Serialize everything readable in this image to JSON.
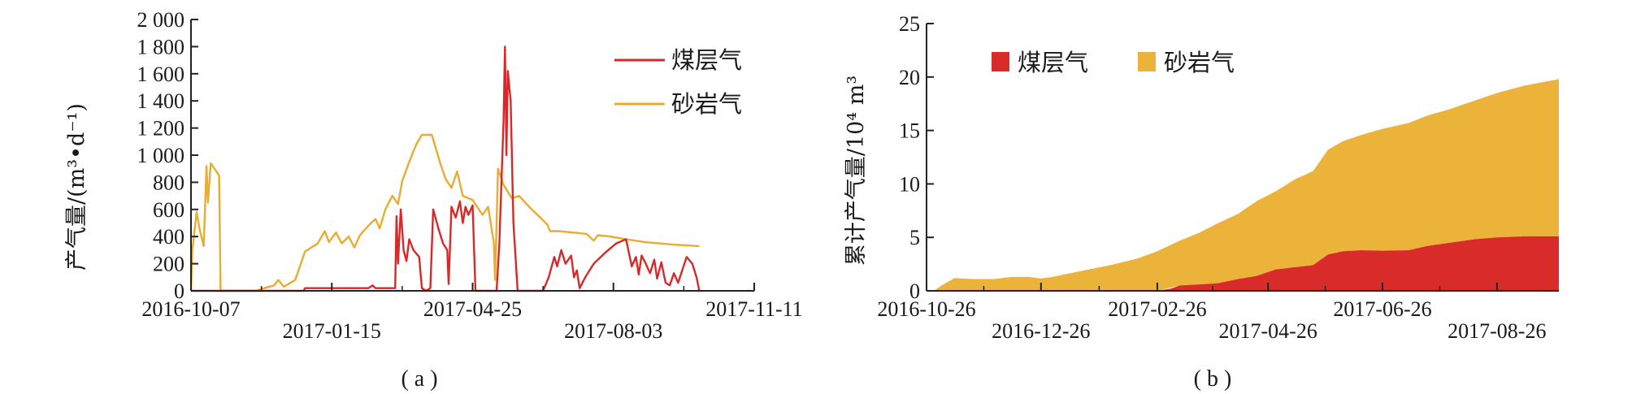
{
  "chart_data": [
    {
      "type": "line",
      "caption": "( a )",
      "ylabel": "产气量/(m³•d⁻¹)",
      "ylim": [
        0,
        2000
      ],
      "yticks": [
        "0",
        "200",
        "400",
        "600",
        "800",
        "1 000",
        "1 200",
        "1 400",
        "1 600",
        "1 800",
        "2 000"
      ],
      "xticks_upper": [
        "2016-10-07",
        "2017-04-25",
        "2017-11-11"
      ],
      "xticks_lower": [
        "2017-01-15",
        "2017-08-03"
      ],
      "x_range": [
        "2016-10-07",
        "2017-11-11"
      ],
      "legend": [
        "煤层气",
        "砂岩气"
      ],
      "colors": {
        "煤层气": "#d62a2a",
        "砂岩气": "#e8ac30"
      },
      "series": [
        {
          "name": "砂岩气",
          "points": [
            [
              "2016-10-07",
              0
            ],
            [
              "2016-10-08",
              300
            ],
            [
              "2016-10-11",
              580
            ],
            [
              "2016-10-13",
              460
            ],
            [
              "2016-10-16",
              330
            ],
            [
              "2016-10-18",
              920
            ],
            [
              "2016-10-19",
              650
            ],
            [
              "2016-10-21",
              940
            ],
            [
              "2016-10-27",
              850
            ],
            [
              "2016-10-28",
              0
            ],
            [
              "2016-11-05",
              0
            ],
            [
              "2016-11-22",
              0
            ],
            [
              "2016-11-28",
              20
            ],
            [
              "2016-12-05",
              40
            ],
            [
              "2016-12-08",
              80
            ],
            [
              "2016-12-12",
              30
            ],
            [
              "2016-12-20",
              80
            ],
            [
              "2016-12-27",
              290
            ],
            [
              "2017-01-05",
              350
            ],
            [
              "2017-01-10",
              440
            ],
            [
              "2017-01-13",
              360
            ],
            [
              "2017-01-18",
              430
            ],
            [
              "2017-01-22",
              350
            ],
            [
              "2017-01-27",
              400
            ],
            [
              "2017-01-31",
              320
            ],
            [
              "2017-02-04",
              410
            ],
            [
              "2017-02-10",
              480
            ],
            [
              "2017-02-15",
              530
            ],
            [
              "2017-02-18",
              460
            ],
            [
              "2017-02-22",
              600
            ],
            [
              "2017-02-27",
              700
            ],
            [
              "2017-03-03",
              640
            ],
            [
              "2017-03-06",
              810
            ],
            [
              "2017-03-11",
              950
            ],
            [
              "2017-03-16",
              1080
            ],
            [
              "2017-03-20",
              1150
            ],
            [
              "2017-03-27",
              1150
            ],
            [
              "2017-04-02",
              940
            ],
            [
              "2017-04-06",
              820
            ],
            [
              "2017-04-10",
              760
            ],
            [
              "2017-04-14",
              880
            ],
            [
              "2017-04-18",
              700
            ],
            [
              "2017-04-25",
              670
            ],
            [
              "2017-05-02",
              560
            ],
            [
              "2017-05-06",
              620
            ],
            [
              "2017-05-10",
              360
            ],
            [
              "2017-05-11",
              80
            ],
            [
              "2017-05-13",
              900
            ],
            [
              "2017-05-17",
              780
            ],
            [
              "2017-05-23",
              680
            ],
            [
              "2017-05-28",
              700
            ],
            [
              "2017-06-05",
              610
            ],
            [
              "2017-06-12",
              540
            ],
            [
              "2017-06-17",
              490
            ],
            [
              "2017-06-19",
              440
            ],
            [
              "2017-06-25",
              440
            ],
            [
              "2017-07-05",
              430
            ],
            [
              "2017-07-15",
              420
            ],
            [
              "2017-07-20",
              370
            ],
            [
              "2017-07-23",
              410
            ],
            [
              "2017-08-01",
              400
            ],
            [
              "2017-08-12",
              380
            ],
            [
              "2017-08-25",
              360
            ],
            [
              "2017-09-15",
              340
            ],
            [
              "2017-10-03",
              330
            ]
          ]
        },
        {
          "name": "煤层气",
          "points": [
            [
              "2016-10-07",
              0
            ],
            [
              "2016-12-26",
              0
            ],
            [
              "2016-12-27",
              20
            ],
            [
              "2017-01-20",
              20
            ],
            [
              "2017-02-10",
              20
            ],
            [
              "2017-02-13",
              40
            ],
            [
              "2017-02-15",
              20
            ],
            [
              "2017-03-01",
              20
            ],
            [
              "2017-03-02",
              550
            ],
            [
              "2017-03-03",
              200
            ],
            [
              "2017-03-05",
              600
            ],
            [
              "2017-03-07",
              300
            ],
            [
              "2017-03-09",
              220
            ],
            [
              "2017-03-11",
              380
            ],
            [
              "2017-03-14",
              300
            ],
            [
              "2017-03-18",
              250
            ],
            [
              "2017-03-20",
              20
            ],
            [
              "2017-03-23",
              0
            ],
            [
              "2017-03-26",
              20
            ],
            [
              "2017-03-28",
              600
            ],
            [
              "2017-04-01",
              450
            ],
            [
              "2017-04-04",
              350
            ],
            [
              "2017-04-07",
              300
            ],
            [
              "2017-04-08",
              50
            ],
            [
              "2017-04-10",
              620
            ],
            [
              "2017-04-13",
              540
            ],
            [
              "2017-04-16",
              660
            ],
            [
              "2017-04-18",
              500
            ],
            [
              "2017-04-20",
              620
            ],
            [
              "2017-04-22",
              560
            ],
            [
              "2017-04-25",
              630
            ],
            [
              "2017-04-27",
              0
            ],
            [
              "2017-05-12",
              0
            ],
            [
              "2017-05-14",
              350
            ],
            [
              "2017-05-17",
              1260
            ],
            [
              "2017-05-18",
              1800
            ],
            [
              "2017-05-19",
              1000
            ],
            [
              "2017-05-20",
              1620
            ],
            [
              "2017-05-22",
              1400
            ],
            [
              "2017-05-24",
              500
            ],
            [
              "2017-05-27",
              0
            ],
            [
              "2017-06-14",
              0
            ],
            [
              "2017-06-18",
              100
            ],
            [
              "2017-06-22",
              250
            ],
            [
              "2017-06-24",
              180
            ],
            [
              "2017-06-27",
              300
            ],
            [
              "2017-06-30",
              200
            ],
            [
              "2017-07-04",
              260
            ],
            [
              "2017-07-06",
              100
            ],
            [
              "2017-07-08",
              150
            ],
            [
              "2017-07-10",
              20
            ],
            [
              "2017-07-14",
              100
            ],
            [
              "2017-07-20",
              200
            ],
            [
              "2017-07-28",
              280
            ],
            [
              "2017-08-05",
              350
            ],
            [
              "2017-08-12",
              380
            ],
            [
              "2017-08-16",
              180
            ],
            [
              "2017-08-19",
              250
            ],
            [
              "2017-08-21",
              120
            ],
            [
              "2017-08-23",
              260
            ],
            [
              "2017-08-26",
              200
            ],
            [
              "2017-08-29",
              130
            ],
            [
              "2017-09-01",
              230
            ],
            [
              "2017-09-03",
              90
            ],
            [
              "2017-09-06",
              210
            ],
            [
              "2017-09-09",
              60
            ],
            [
              "2017-09-12",
              40
            ],
            [
              "2017-09-15",
              130
            ],
            [
              "2017-09-18",
              60
            ],
            [
              "2017-09-24",
              250
            ],
            [
              "2017-09-28",
              200
            ],
            [
              "2017-10-01",
              100
            ],
            [
              "2017-10-03",
              0
            ]
          ]
        }
      ]
    },
    {
      "type": "area",
      "caption": "( b )",
      "ylabel": "累计产气量/10⁴ m³",
      "ylim": [
        0,
        25
      ],
      "yticks": [
        "0",
        "5",
        "10",
        "15",
        "20",
        "25"
      ],
      "xticks_upper": [
        "2016-10-26",
        "2017-02-26",
        "2017-06-26"
      ],
      "xticks_lower": [
        "2016-12-26",
        "2017-04-26",
        "2017-08-26"
      ],
      "x_range": [
        "2016-10-26",
        "2017-09-28"
      ],
      "legend": [
        "煤层气",
        "砂岩气"
      ],
      "colors": {
        "煤层气": "#da2b2b",
        "砂岩气": "#ebb33a"
      },
      "stacked": true,
      "series": [
        {
          "name": "煤层气",
          "points": [
            [
              "2016-10-30",
              0
            ],
            [
              "2017-02-26",
              0
            ],
            [
              "2017-03-05",
              0.2
            ],
            [
              "2017-03-10",
              0.5
            ],
            [
              "2017-03-20",
              0.6
            ],
            [
              "2017-03-30",
              0.7
            ],
            [
              "2017-04-10",
              1.1
            ],
            [
              "2017-04-20",
              1.4
            ],
            [
              "2017-04-30",
              2.0
            ],
            [
              "2017-05-10",
              2.2
            ],
            [
              "2017-05-20",
              2.4
            ],
            [
              "2017-05-28",
              3.4
            ],
            [
              "2017-06-05",
              3.7
            ],
            [
              "2017-06-15",
              3.8
            ],
            [
              "2017-06-26",
              3.75
            ],
            [
              "2017-07-10",
              3.8
            ],
            [
              "2017-07-20",
              4.2
            ],
            [
              "2017-08-01",
              4.5
            ],
            [
              "2017-08-15",
              4.85
            ],
            [
              "2017-08-26",
              5.0
            ],
            [
              "2017-09-10",
              5.1
            ],
            [
              "2017-09-28",
              5.1
            ]
          ]
        },
        {
          "name": "砂岩气",
          "points": [
            [
              "2016-10-30",
              0
            ],
            [
              "2016-11-03",
              0.5
            ],
            [
              "2016-11-10",
              1.2
            ],
            [
              "2016-11-20",
              1.1
            ],
            [
              "2016-12-01",
              1.1
            ],
            [
              "2016-12-10",
              1.3
            ],
            [
              "2016-12-20",
              1.3
            ],
            [
              "2016-12-26",
              1.15
            ],
            [
              "2017-01-01",
              1.3
            ],
            [
              "2017-01-15",
              1.8
            ],
            [
              "2017-02-01",
              2.4
            ],
            [
              "2017-02-15",
              3.0
            ],
            [
              "2017-02-26",
              3.7
            ],
            [
              "2017-03-10",
              4.2
            ],
            [
              "2017-03-20",
              4.8
            ],
            [
              "2017-03-30",
              5.6
            ],
            [
              "2017-04-10",
              6.1
            ],
            [
              "2017-04-20",
              7.0
            ],
            [
              "2017-04-30",
              7.3
            ],
            [
              "2017-05-10",
              8.2
            ],
            [
              "2017-05-20",
              8.8
            ],
            [
              "2017-05-28",
              9.8
            ],
            [
              "2017-06-05",
              10.3
            ],
            [
              "2017-06-15",
              10.8
            ],
            [
              "2017-06-26",
              11.4
            ],
            [
              "2017-07-10",
              11.9
            ],
            [
              "2017-07-20",
              12.2
            ],
            [
              "2017-08-01",
              12.5
            ],
            [
              "2017-08-15",
              13.0
            ],
            [
              "2017-08-26",
              13.5
            ],
            [
              "2017-09-10",
              14.1
            ],
            [
              "2017-09-28",
              14.7
            ]
          ]
        }
      ]
    }
  ]
}
